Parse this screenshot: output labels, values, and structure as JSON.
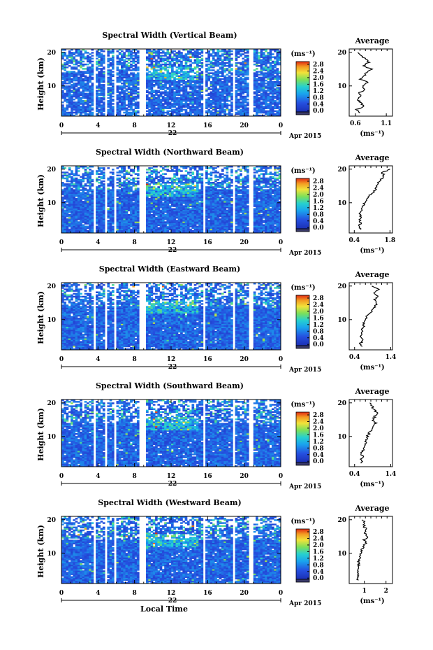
{
  "chart_data": [
    {
      "type": "heatmap",
      "title": "Spectral Width (Vertical Beam)",
      "ylabel": "Height (km)",
      "x_ticks": [
        "0",
        "4",
        "8",
        "12",
        "16",
        "20",
        "0"
      ],
      "y_ticks": [
        "20",
        "10"
      ],
      "date_label": "22",
      "month_label": "Apr 2015",
      "colorbar": {
        "unit": "(ms⁻¹)",
        "ticks": [
          "2.8",
          "2.4",
          "2.0",
          "1.6",
          "1.2",
          "0.8",
          "0.4",
          "0.0"
        ],
        "range": [
          0,
          3.0
        ]
      },
      "average": {
        "title": "Average",
        "xlabel": "(ms⁻¹)",
        "x_ticks": [
          "0.6",
          "1.1"
        ],
        "xlim": [
          0.5,
          1.2
        ],
        "y_ticks": [
          "20",
          "10"
        ],
        "height_km": [
          2,
          3,
          4,
          5,
          6,
          7,
          8,
          9,
          10,
          11,
          12,
          13,
          14,
          15,
          16,
          17,
          18,
          19,
          20
        ],
        "values": [
          0.66,
          0.62,
          0.74,
          0.68,
          0.64,
          0.7,
          0.66,
          0.76,
          0.72,
          0.8,
          0.68,
          0.74,
          0.78,
          0.86,
          0.72,
          0.82,
          0.76,
          0.7,
          0.64
        ]
      }
    },
    {
      "type": "heatmap",
      "title": "Spectral Width (Northward Beam)",
      "ylabel": "Height (km)",
      "x_ticks": [
        "0",
        "4",
        "8",
        "12",
        "16",
        "20",
        "0"
      ],
      "y_ticks": [
        "20",
        "10"
      ],
      "date_label": "22",
      "month_label": "Apr 2015",
      "colorbar": {
        "unit": "(ms⁻¹)",
        "ticks": [
          "2.8",
          "2.4",
          "2.0",
          "1.6",
          "1.2",
          "0.8",
          "0.4",
          "0.0"
        ],
        "range": [
          0,
          3.0
        ]
      },
      "average": {
        "title": "Average",
        "xlabel": "(ms⁻¹)",
        "x_ticks": [
          "0.4",
          "1.8"
        ],
        "xlim": [
          0.2,
          1.9
        ],
        "y_ticks": [
          "20",
          "10"
        ],
        "height_km": [
          2,
          3,
          4,
          5,
          6,
          7,
          8,
          9,
          10,
          11,
          12,
          13,
          14,
          15,
          16,
          17,
          18,
          19,
          20
        ],
        "values": [
          0.62,
          0.58,
          0.66,
          0.6,
          0.64,
          0.62,
          0.7,
          0.74,
          0.8,
          0.86,
          0.96,
          1.12,
          1.24,
          1.3,
          1.36,
          1.44,
          1.58,
          1.5,
          1.8
        ]
      }
    },
    {
      "type": "heatmap",
      "title": "Spectral Width (Eastward Beam)",
      "ylabel": "Height (km)",
      "x_ticks": [
        "0",
        "4",
        "8",
        "12",
        "16",
        "20",
        "0"
      ],
      "y_ticks": [
        "20",
        "10"
      ],
      "date_label": "22",
      "month_label": "Apr 2015",
      "colorbar": {
        "unit": "(ms⁻¹)",
        "ticks": [
          "2.8",
          "2.4",
          "2.0",
          "1.6",
          "1.2",
          "0.8",
          "0.4",
          "0.0"
        ],
        "range": [
          0,
          3.0
        ]
      },
      "average": {
        "title": "Average",
        "xlabel": "(ms⁻¹)",
        "x_ticks": [
          "0.4",
          "1.4"
        ],
        "xlim": [
          0.25,
          1.45
        ],
        "y_ticks": [
          "20",
          "10"
        ],
        "height_km": [
          2,
          3,
          4,
          5,
          6,
          7,
          8,
          9,
          10,
          11,
          12,
          13,
          14,
          15,
          16,
          17,
          18,
          19,
          20
        ],
        "values": [
          0.6,
          0.56,
          0.64,
          0.58,
          0.62,
          0.6,
          0.64,
          0.66,
          0.7,
          0.74,
          0.82,
          0.9,
          0.98,
          1.02,
          0.96,
          1.04,
          0.92,
          1.06,
          0.88
        ]
      }
    },
    {
      "type": "heatmap",
      "title": "Spectral Width (Southward Beam)",
      "ylabel": "Height (km)",
      "x_ticks": [
        "0",
        "4",
        "8",
        "12",
        "16",
        "20",
        "0"
      ],
      "y_ticks": [
        "20",
        "10"
      ],
      "date_label": "22",
      "month_label": "Apr 2015",
      "colorbar": {
        "unit": "(ms⁻¹)",
        "ticks": [
          "2.8",
          "2.4",
          "2.0",
          "1.6",
          "1.2",
          "0.8",
          "0.4",
          "0.0"
        ],
        "range": [
          0,
          3.0
        ]
      },
      "average": {
        "title": "Average",
        "xlabel": "(ms⁻¹)",
        "x_ticks": [
          "0.4",
          "1.4"
        ],
        "xlim": [
          0.25,
          1.45
        ],
        "y_ticks": [
          "20",
          "10"
        ],
        "height_km": [
          2,
          3,
          4,
          5,
          6,
          7,
          8,
          9,
          10,
          11,
          12,
          13,
          14,
          15,
          16,
          17,
          18,
          19,
          20
        ],
        "values": [
          0.6,
          0.58,
          0.62,
          0.6,
          0.64,
          0.66,
          0.7,
          0.72,
          0.76,
          0.8,
          0.86,
          0.92,
          0.98,
          0.9,
          0.96,
          1.02,
          0.94,
          0.88,
          0.82
        ]
      }
    },
    {
      "type": "heatmap",
      "title": "Spectral Width (Westward Beam)",
      "ylabel": "Height (km)",
      "x_ticks": [
        "0",
        "4",
        "8",
        "12",
        "16",
        "20",
        "0"
      ],
      "y_ticks": [
        "20",
        "10"
      ],
      "date_label": "22",
      "month_label": "Apr 2015",
      "xlabel": "Local Time",
      "colorbar": {
        "unit": "(ms⁻¹)",
        "ticks": [
          "2.8",
          "2.4",
          "2.0",
          "1.6",
          "1.2",
          "0.8",
          "0.4",
          "0.0"
        ],
        "range": [
          0,
          3.0
        ]
      },
      "average": {
        "title": "Average",
        "xlabel": "(ms⁻¹)",
        "x_ticks": [
          "1",
          "2"
        ],
        "xlim": [
          0.3,
          2.3
        ],
        "y_ticks": [
          "20",
          "10"
        ],
        "height_km": [
          2,
          3,
          4,
          5,
          6,
          7,
          8,
          9,
          10,
          11,
          12,
          13,
          14,
          15,
          16,
          17,
          18,
          19,
          20
        ],
        "values": [
          0.72,
          0.68,
          0.74,
          0.7,
          0.72,
          0.76,
          0.74,
          0.78,
          0.82,
          0.86,
          0.96,
          1.06,
          1.0,
          1.14,
          1.04,
          1.1,
          0.98,
          1.02,
          0.9
        ]
      }
    }
  ]
}
